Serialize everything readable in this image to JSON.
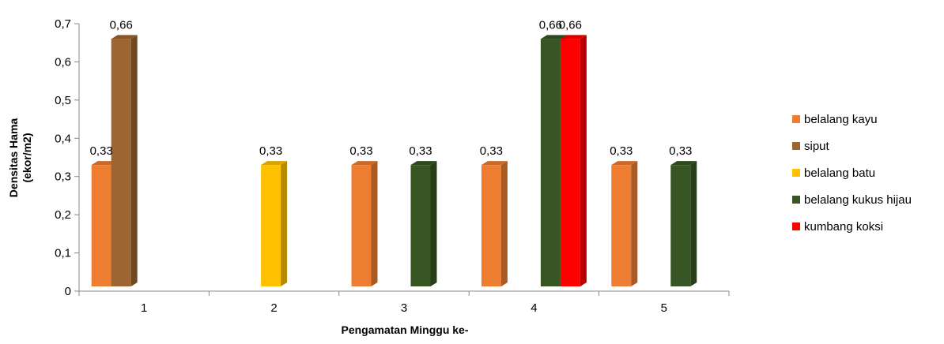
{
  "chart_data": {
    "type": "bar",
    "style": "3d-clustered-column",
    "categories": [
      "1",
      "2",
      "3",
      "4",
      "5"
    ],
    "xlabel": "Pengamatan Minggu ke-",
    "ylabel_lines": [
      "Densitas Hama",
      "(ekor/m2)"
    ],
    "ylim": [
      0,
      0.7
    ],
    "yticks": [
      "0",
      "0,1",
      "0,2",
      "0,3",
      "0,4",
      "0,5",
      "0,6",
      "0,7"
    ],
    "grid": false,
    "legend_position": "right",
    "series": [
      {
        "name": "belalang kayu",
        "color": "#ED7D31",
        "values": [
          0.33,
          null,
          0.33,
          0.33,
          0.33
        ],
        "labels": [
          "0,33",
          "",
          "0,33",
          "0,33",
          "0,33"
        ]
      },
      {
        "name": "siput",
        "color": "#9C6531",
        "values": [
          0.66,
          null,
          null,
          null,
          null
        ],
        "labels": [
          "0,66",
          "",
          "",
          "",
          ""
        ]
      },
      {
        "name": "belalang batu",
        "color": "#FFC000",
        "values": [
          null,
          0.33,
          null,
          null,
          null
        ],
        "labels": [
          "",
          "0,33",
          "",
          "",
          ""
        ]
      },
      {
        "name": "belalang kukus hijau",
        "color": "#375623",
        "values": [
          null,
          null,
          0.33,
          0.66,
          0.33
        ],
        "labels": [
          "",
          "",
          "0,33",
          "0,66",
          "0,33"
        ]
      },
      {
        "name": "kumbang koksi",
        "color": "#FF0000",
        "values": [
          null,
          null,
          null,
          0.66,
          null
        ],
        "labels": [
          "",
          "",
          "",
          "0,66",
          ""
        ]
      }
    ]
  }
}
